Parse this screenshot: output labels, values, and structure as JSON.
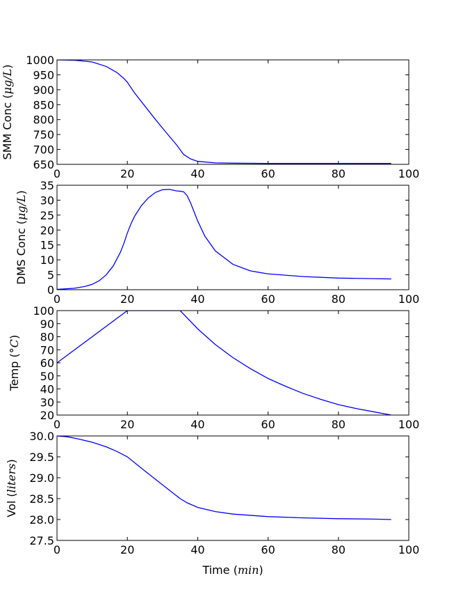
{
  "chart_data": [
    {
      "type": "line",
      "ylabel": "SMM Conc",
      "ylabel_unit": "μg/L",
      "xlim": [
        0,
        100
      ],
      "ylim": [
        650,
        1000
      ],
      "xticks": [
        0,
        20,
        40,
        60,
        80,
        100
      ],
      "yticks": [
        650,
        700,
        750,
        800,
        850,
        900,
        950,
        1000
      ],
      "grid": false,
      "color": "#0000ff",
      "series": [
        {
          "x": [
            0,
            5,
            10,
            14,
            17,
            19,
            20,
            22,
            25,
            28,
            31,
            34,
            36,
            38,
            40,
            45,
            50,
            60,
            70,
            80,
            90,
            95
          ],
          "y": [
            1000,
            999,
            993,
            978,
            958,
            938,
            925,
            890,
            845,
            800,
            757,
            715,
            683,
            668,
            660,
            655,
            654,
            653,
            653,
            653,
            653,
            653
          ]
        }
      ]
    },
    {
      "type": "line",
      "ylabel": "DMS Conc",
      "ylabel_unit": "μg/L",
      "xlim": [
        0,
        100
      ],
      "ylim": [
        0,
        35
      ],
      "xticks": [
        0,
        20,
        40,
        60,
        80,
        100
      ],
      "yticks": [
        0,
        5,
        10,
        15,
        20,
        25,
        30,
        35
      ],
      "grid": false,
      "color": "#0000ff",
      "series": [
        {
          "x": [
            0,
            5,
            8,
            10,
            12,
            14,
            16,
            18,
            19,
            20,
            21,
            22,
            24,
            26,
            28,
            30,
            32,
            34,
            35,
            36,
            37,
            38,
            40,
            42,
            45,
            50,
            55,
            60,
            70,
            80,
            90,
            95
          ],
          "y": [
            0.1,
            0.5,
            1.1,
            1.8,
            3.0,
            5.0,
            8.0,
            12.5,
            15.5,
            19.0,
            22.0,
            24.5,
            28.2,
            30.8,
            32.6,
            33.5,
            33.6,
            33.1,
            33.0,
            32.8,
            31.5,
            29.0,
            23.0,
            18.0,
            13.0,
            8.5,
            6.3,
            5.3,
            4.4,
            3.9,
            3.7,
            3.6
          ]
        }
      ]
    },
    {
      "type": "line",
      "ylabel": "Temp",
      "ylabel_unit": "°C",
      "xlim": [
        0,
        100
      ],
      "ylim": [
        20,
        100
      ],
      "xticks": [
        0,
        20,
        40,
        60,
        80,
        100
      ],
      "yticks": [
        20,
        30,
        40,
        50,
        60,
        70,
        80,
        90,
        100
      ],
      "grid": false,
      "color": "#0000ff",
      "series": [
        {
          "x": [
            0,
            20,
            35,
            40,
            45,
            50,
            55,
            60,
            65,
            70,
            75,
            80,
            85,
            90,
            95
          ],
          "y": [
            60,
            100,
            100,
            86,
            74,
            64,
            55.5,
            48,
            42,
            36.5,
            32,
            28,
            25,
            22.5,
            20
          ]
        }
      ]
    },
    {
      "type": "line",
      "ylabel": "Vol",
      "ylabel_unit": "liters",
      "xlabel": "Time",
      "xlabel_unit": "min",
      "xlim": [
        0,
        100
      ],
      "ylim": [
        27.5,
        30.0
      ],
      "xticks": [
        0,
        20,
        40,
        60,
        80,
        100
      ],
      "yticks": [
        27.5,
        28.0,
        28.5,
        29.0,
        29.5,
        30.0
      ],
      "grid": false,
      "color": "#0000ff",
      "series": [
        {
          "x": [
            0,
            3,
            6,
            10,
            14,
            17,
            20,
            25,
            30,
            35,
            37,
            40,
            45,
            50,
            60,
            70,
            80,
            90,
            95
          ],
          "y": [
            30.0,
            29.98,
            29.93,
            29.85,
            29.74,
            29.63,
            29.5,
            29.16,
            28.83,
            28.5,
            28.4,
            28.29,
            28.19,
            28.13,
            28.07,
            28.04,
            28.02,
            28.01,
            28.0
          ]
        }
      ]
    }
  ]
}
